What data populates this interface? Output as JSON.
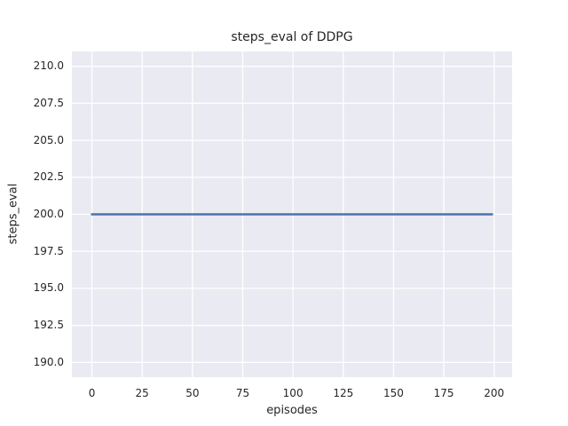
{
  "chart_data": {
    "type": "line",
    "title": "steps_eval of DDPG",
    "xlabel": "episodes",
    "ylabel": "steps_eval",
    "xlim": [
      -9.95,
      208.95
    ],
    "ylim": [
      189.0,
      211.0
    ],
    "xticks": [
      0,
      25,
      50,
      75,
      100,
      125,
      150,
      175,
      200
    ],
    "xtick_labels": [
      "0",
      "25",
      "50",
      "75",
      "100",
      "125",
      "150",
      "175",
      "200"
    ],
    "yticks": [
      190.0,
      192.5,
      195.0,
      197.5,
      200.0,
      202.5,
      205.0,
      207.5,
      210.0
    ],
    "ytick_labels": [
      "190.0",
      "192.5",
      "195.0",
      "197.5",
      "200.0",
      "202.5",
      "205.0",
      "207.5",
      "210.0"
    ],
    "grid": true,
    "legend": "none",
    "series": [
      {
        "name": "DDPG steps_eval",
        "x": [
          0,
          199
        ],
        "y": [
          200,
          200
        ]
      }
    ],
    "colors": {
      "line": "#4C72B0",
      "axes_background": "#EAEAF2",
      "grid": "#FFFFFF",
      "text": "#262626",
      "figure_background": "#FFFFFF"
    }
  }
}
